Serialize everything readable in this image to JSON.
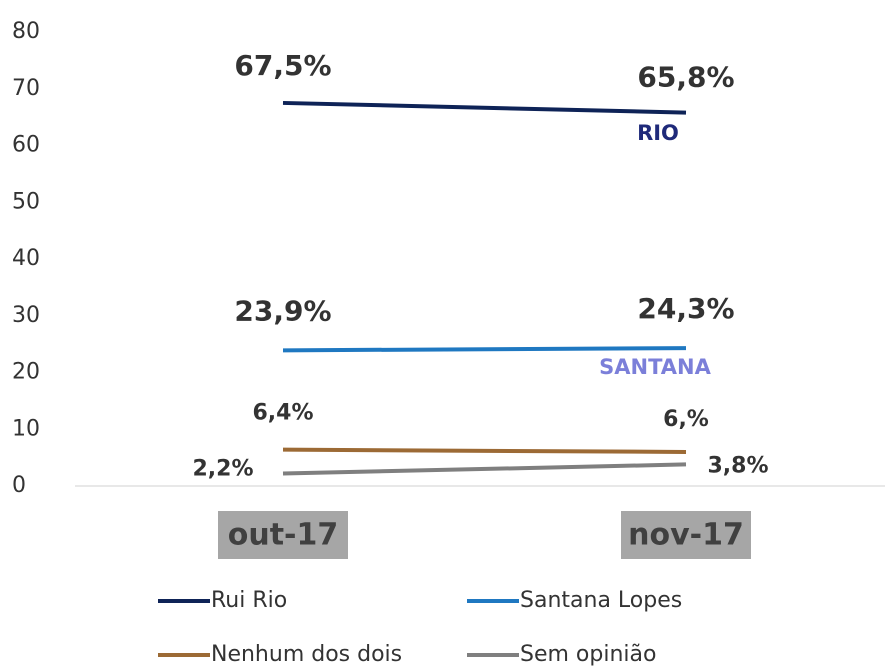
{
  "chart_data": {
    "type": "line",
    "categories": [
      "out-17",
      "nov-17"
    ],
    "series": [
      {
        "name": "Rui Rio",
        "color": "#0e2357",
        "values": [
          67.5,
          65.8
        ],
        "value_labels": [
          "67,5%",
          "65,8%"
        ]
      },
      {
        "name": "Santana Lopes",
        "color": "#1f78c1",
        "values": [
          23.9,
          24.3
        ],
        "value_labels": [
          "23,9%",
          "24,3%"
        ]
      },
      {
        "name": "Nenhum dos dois",
        "color": "#9c6a35",
        "values": [
          6.4,
          6
        ],
        "value_labels": [
          "6,4%",
          "6,%"
        ]
      },
      {
        "name": "Sem opinião",
        "color": "#7f7f7f",
        "values": [
          2.2,
          3.8
        ],
        "value_labels": [
          "2,2%",
          "3,8%"
        ]
      }
    ],
    "annotations": [
      {
        "text": "RIO",
        "color": "#1f2a7a"
      },
      {
        "text": "SANTANA",
        "color": "#7b7fd9"
      }
    ],
    "ylim": [
      0,
      80
    ],
    "yticks": [
      0,
      10,
      20,
      30,
      40,
      50,
      60,
      70,
      80
    ]
  }
}
